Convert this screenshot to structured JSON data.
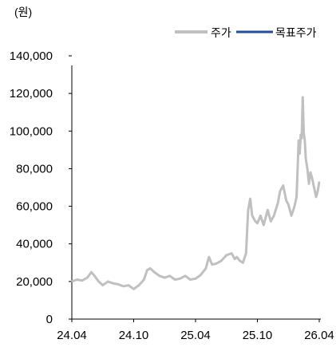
{
  "chart_data": {
    "type": "line",
    "unit_label": "(원)",
    "ylim": [
      0,
      140000
    ],
    "y_ticks": [
      "0",
      "20,000",
      "40,000",
      "60,000",
      "80,000",
      "100,000",
      "120,000",
      "140,000"
    ],
    "y_tick_values": [
      0,
      20000,
      40000,
      60000,
      80000,
      100000,
      120000,
      140000
    ],
    "x_ticks": [
      "24.04",
      "24.10",
      "25.04",
      "25.10",
      "26.04"
    ],
    "x_tick_months": [
      0,
      6,
      12,
      18,
      24
    ],
    "xlim_months": [
      0,
      24
    ],
    "legend_position": "top-right",
    "series": [
      {
        "name": "주가",
        "color": "#c0c0c0",
        "months": [
          0,
          0.5,
          1,
          1.5,
          1.9,
          2.2,
          2.6,
          3,
          3.5,
          4,
          4.5,
          5,
          5.5,
          6,
          6.5,
          7,
          7.3,
          7.6,
          8,
          8.5,
          9,
          9.5,
          10,
          10.5,
          11,
          11.5,
          12,
          12.5,
          13,
          13.3,
          13.6,
          14,
          14.5,
          15,
          15.5,
          15.8,
          16,
          16.3,
          16.6,
          16.9,
          17.1,
          17.3,
          17.5,
          17.8,
          18,
          18.3,
          18.6,
          19,
          19.3,
          19.6,
          20,
          20.2,
          20.5,
          20.8,
          21,
          21.3,
          21.6,
          21.8,
          22,
          22.1,
          22.2,
          22.3,
          22.4,
          22.5,
          22.6,
          22.7,
          22.85,
          23,
          23.15,
          23.3,
          23.5,
          23.7,
          23.85,
          24
        ],
        "values": [
          20000,
          21000,
          20500,
          22000,
          25000,
          23000,
          20000,
          18000,
          20000,
          19000,
          18500,
          17500,
          18000,
          16000,
          18000,
          21000,
          26000,
          27000,
          25000,
          23000,
          22000,
          23000,
          21000,
          21500,
          23000,
          21000,
          21500,
          23500,
          27000,
          33000,
          29000,
          29500,
          31000,
          34000,
          35000,
          32000,
          33000,
          31000,
          30000,
          35000,
          58000,
          64000,
          55000,
          52000,
          51000,
          55000,
          50000,
          58000,
          52000,
          55000,
          62000,
          68000,
          71000,
          63000,
          61000,
          55000,
          60000,
          65000,
          95000,
          88000,
          98000,
          96000,
          118000,
          99000,
          95000,
          85000,
          80000,
          72000,
          78000,
          75000,
          70000,
          65000,
          68000,
          73000
        ]
      },
      {
        "name": "목표주가",
        "color": "#1f4e99",
        "months": [],
        "values": []
      }
    ]
  }
}
